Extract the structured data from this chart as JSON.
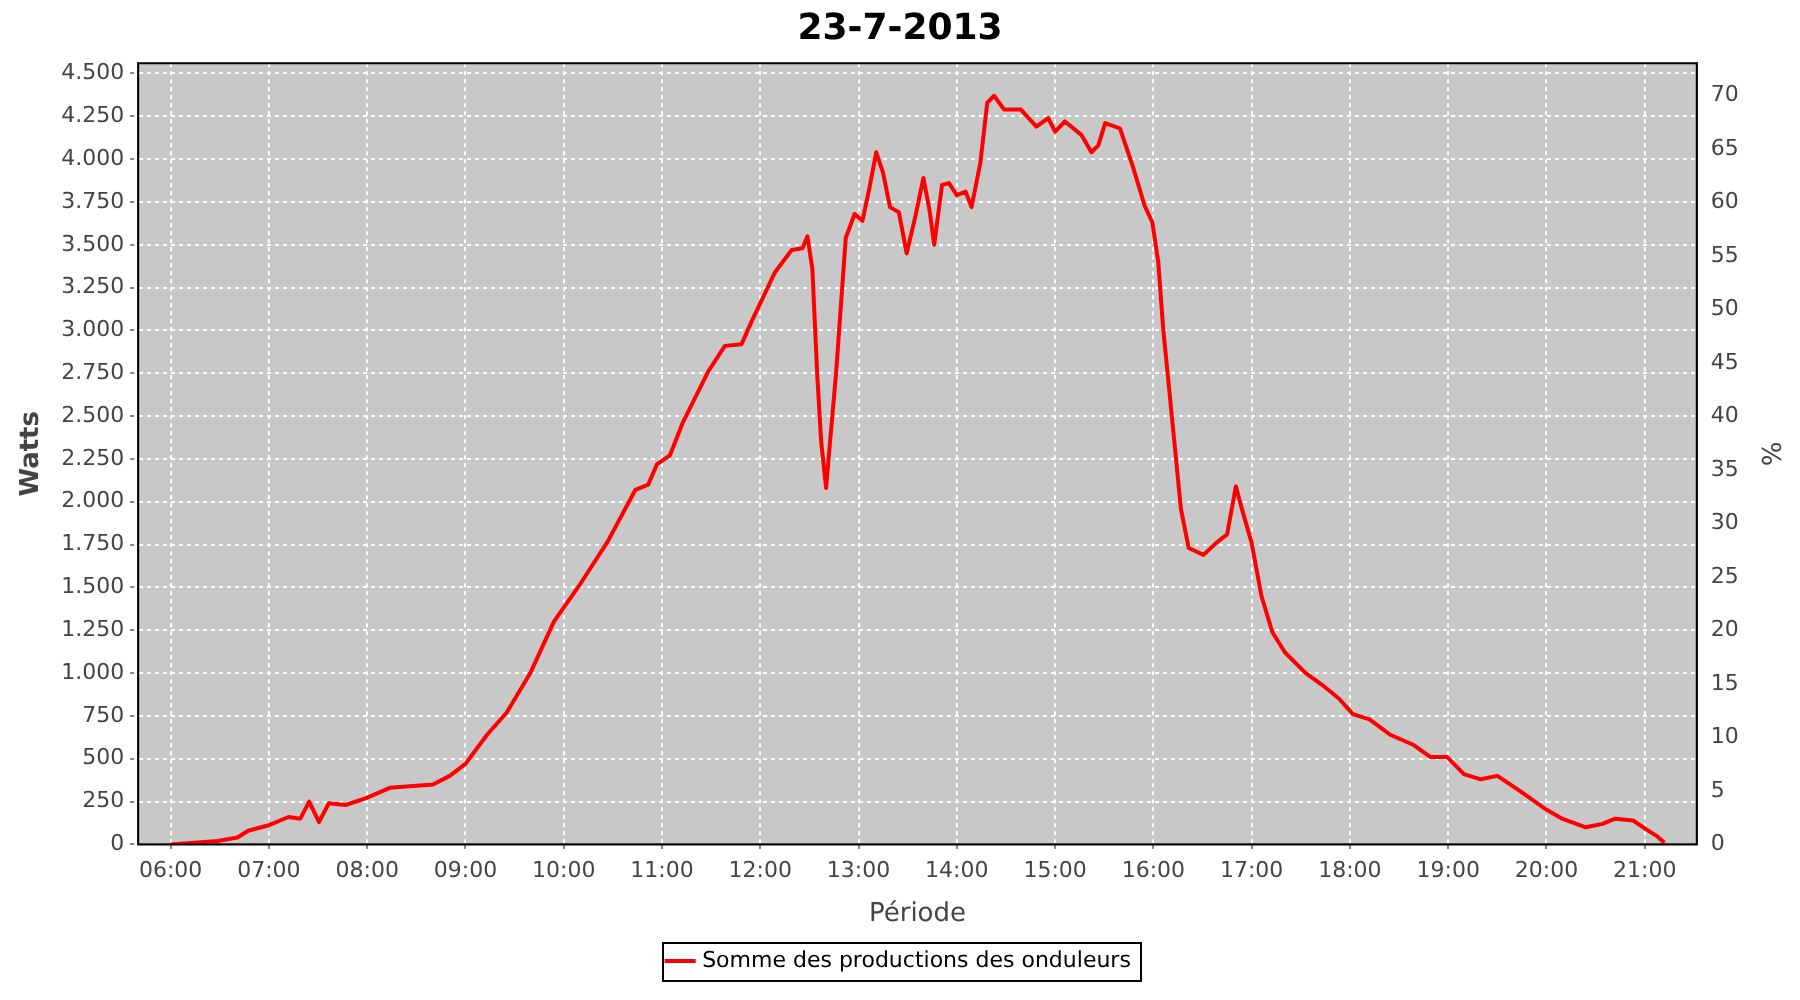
{
  "chart_data": {
    "type": "line",
    "title": "23-7-2013",
    "xlabel": "Période",
    "ylabel": "Watts",
    "y2label": "%",
    "xlim": [
      5.67,
      21.53
    ],
    "xticks": [
      {
        "value": 6,
        "label": "06:00"
      },
      {
        "value": 7,
        "label": "07:00"
      },
      {
        "value": 8,
        "label": "08:00"
      },
      {
        "value": 9,
        "label": "09:00"
      },
      {
        "value": 10,
        "label": "10:00"
      },
      {
        "value": 11,
        "label": "11:00"
      },
      {
        "value": 12,
        "label": "12:00"
      },
      {
        "value": 13,
        "label": "13:00"
      },
      {
        "value": 14,
        "label": "14:00"
      },
      {
        "value": 15,
        "label": "15:00"
      },
      {
        "value": 16,
        "label": "16:00"
      },
      {
        "value": 17,
        "label": "17:00"
      },
      {
        "value": 18,
        "label": "18:00"
      },
      {
        "value": 19,
        "label": "19:00"
      },
      {
        "value": 20,
        "label": "20:00"
      },
      {
        "value": 21,
        "label": "21:00"
      }
    ],
    "ylim": [
      0,
      4560
    ],
    "yticks": [
      0,
      250,
      500,
      750,
      {
        "value": 1000,
        "label": "1.000"
      },
      {
        "value": 1250,
        "label": "1.250"
      },
      {
        "value": 1500,
        "label": "1.500"
      },
      {
        "value": 1750,
        "label": "1.750"
      },
      {
        "value": 2000,
        "label": "2.000"
      },
      {
        "value": 2250,
        "label": "2.250"
      },
      {
        "value": 2500,
        "label": "2.500"
      },
      {
        "value": 2750,
        "label": "2.750"
      },
      {
        "value": 3000,
        "label": "3.000"
      },
      {
        "value": 3250,
        "label": "3.250"
      },
      {
        "value": 3500,
        "label": "3.500"
      },
      {
        "value": 3750,
        "label": "3.750"
      },
      {
        "value": 4000,
        "label": "4.000"
      },
      {
        "value": 4250,
        "label": "4.250"
      },
      {
        "value": 4500,
        "label": "4.500"
      }
    ],
    "y2lim": [
      0,
      73
    ],
    "y2ticks": [
      0,
      5,
      10,
      15,
      20,
      25,
      30,
      35,
      40,
      45,
      50,
      55,
      60,
      65,
      70
    ],
    "grid": true,
    "legend": "bottom",
    "marker": "none",
    "line_style": "solid",
    "series": [
      {
        "name": "Somme des productions des onduleurs",
        "color": "#ff0000",
        "x": [
          6.0,
          6.48,
          6.68,
          6.79,
          6.99,
          7.2,
          7.32,
          7.41,
          7.51,
          7.61,
          7.78,
          7.99,
          8.23,
          8.67,
          8.84,
          9.0,
          9.22,
          9.42,
          9.66,
          9.9,
          10.18,
          10.45,
          10.73,
          10.86,
          10.95,
          11.08,
          11.21,
          11.47,
          11.64,
          11.81,
          11.91,
          12.15,
          12.32,
          12.43,
          12.48,
          12.53,
          12.58,
          12.62,
          12.67,
          12.71,
          12.77,
          12.87,
          12.96,
          13.04,
          13.11,
          13.18,
          13.25,
          13.32,
          13.41,
          13.49,
          13.58,
          13.66,
          13.72,
          13.77,
          13.85,
          13.92,
          14.0,
          14.09,
          14.15,
          14.24,
          14.31,
          14.38,
          14.48,
          14.65,
          14.81,
          14.93,
          15.0,
          15.1,
          15.27,
          15.37,
          15.44,
          15.51,
          15.66,
          15.79,
          15.91,
          15.99,
          16.05,
          16.1,
          16.2,
          16.28,
          16.36,
          16.51,
          16.64,
          16.75,
          16.84,
          16.9,
          17.0,
          17.1,
          17.21,
          17.34,
          17.55,
          17.72,
          17.89,
          18.03,
          18.2,
          18.41,
          18.65,
          18.82,
          18.99,
          19.16,
          19.33,
          19.5,
          19.71,
          19.98,
          20.16,
          20.4,
          20.57,
          20.7,
          20.88,
          21.01,
          21.12,
          21.2
        ],
        "values": [
          0,
          20,
          40,
          80,
          110,
          160,
          150,
          250,
          130,
          240,
          230,
          270,
          330,
          350,
          400,
          470,
          640,
          770,
          1000,
          1300,
          1530,
          1770,
          2070,
          2100,
          2220,
          2270,
          2460,
          2760,
          2910,
          2920,
          3050,
          3340,
          3470,
          3480,
          3550,
          3360,
          2740,
          2350,
          2080,
          2350,
          2740,
          3540,
          3680,
          3640,
          3830,
          4040,
          3920,
          3720,
          3690,
          3450,
          3670,
          3890,
          3710,
          3500,
          3850,
          3860,
          3790,
          3810,
          3720,
          3980,
          4330,
          4370,
          4290,
          4290,
          4190,
          4240,
          4160,
          4220,
          4140,
          4040,
          4080,
          4210,
          4180,
          3960,
          3730,
          3630,
          3400,
          3010,
          2430,
          1960,
          1730,
          1690,
          1760,
          1810,
          2090,
          1960,
          1760,
          1450,
          1240,
          1120,
          1000,
          930,
          850,
          760,
          730,
          640,
          580,
          510,
          510,
          410,
          380,
          400,
          320,
          210,
          150,
          100,
          120,
          150,
          140,
          90,
          50,
          10
        ]
      }
    ]
  }
}
